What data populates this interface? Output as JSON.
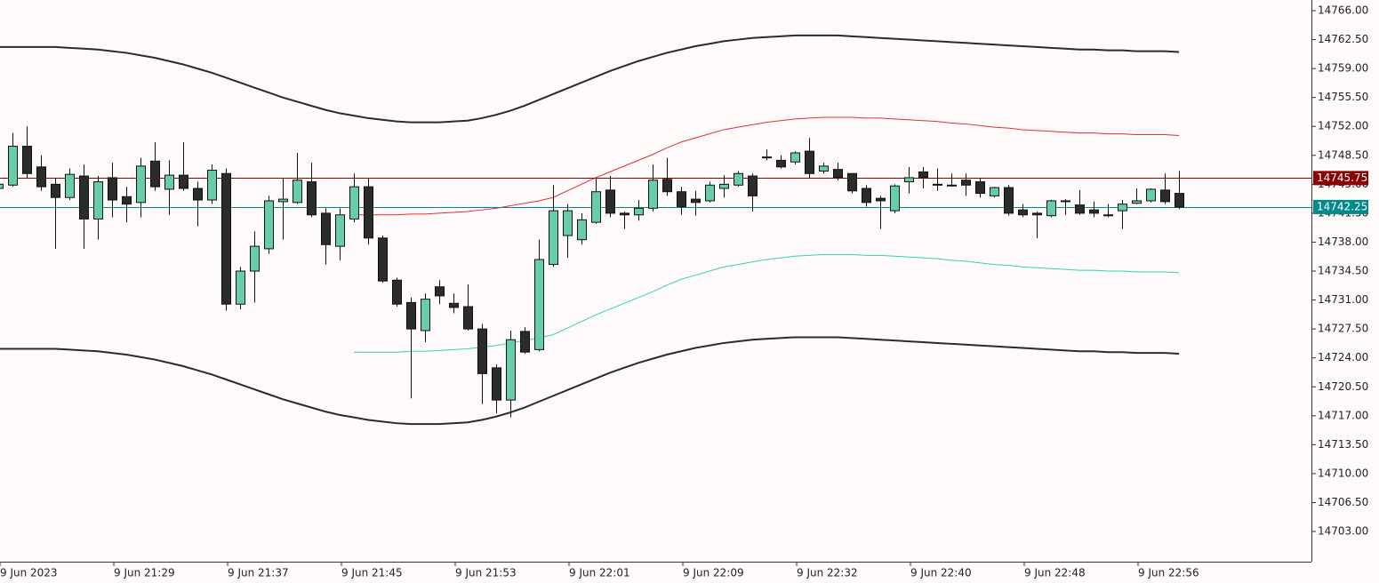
{
  "chart_data": {
    "type": "candlestick",
    "categories": [
      "9 Jun 2023",
      null,
      null,
      null,
      null,
      null,
      null,
      null,
      "9 Jun 21:29",
      null,
      null,
      null,
      null,
      null,
      null,
      null,
      "9 Jun 21:37",
      null,
      null,
      null,
      null,
      null,
      null,
      null,
      "9 Jun 21:45",
      null,
      null,
      null,
      null,
      null,
      null,
      null,
      "9 Jun 21:53",
      null,
      null,
      null,
      null,
      null,
      null,
      null,
      "9 Jun 22:01",
      null,
      null,
      null,
      null,
      null,
      null,
      null,
      "9 Jun 22:09",
      null,
      null,
      null,
      null,
      null,
      null,
      null,
      "9 Jun 22:32",
      null,
      null,
      null,
      null,
      null,
      null,
      null,
      "9 Jun 22:40",
      null,
      null,
      null,
      null,
      null,
      null,
      null,
      "9 Jun 22:48",
      null,
      null,
      null,
      null,
      null,
      null,
      null,
      "9 Jun 22:56",
      null,
      null,
      null
    ],
    "open": [
      14744.5,
      14744.9,
      14749.6,
      14747.1,
      14745.0,
      14743.4,
      14746.0,
      14740.8,
      14745.8,
      14743.5,
      14742.8,
      14747.8,
      14744.4,
      14746.1,
      14744.5,
      14743.1,
      14746.3,
      14730.5,
      14734.5,
      14737.2,
      14742.9,
      14742.8,
      14745.3,
      14741.5,
      14737.5,
      14740.8,
      14744.7,
      14738.5,
      14733.4,
      14730.7,
      14727.3,
      14732.6,
      14730.6,
      14730.2,
      14727.5,
      14722.8,
      14718.9,
      14727.2,
      14725.0,
      14735.3,
      14738.8,
      14738.3,
      14740.4,
      14744.3,
      14741.5,
      14741.3,
      14742.1,
      14745.6,
      14744.1,
      14743.2,
      14743.0,
      14744.5,
      14744.9,
      14746.0,
      14748.2,
      14747.9,
      14747.7,
      14749.0,
      14746.6,
      14746.8,
      14746.3,
      14744.5,
      14743.3,
      14741.8,
      14745.3,
      14746.5,
      14744.9,
      14744.9,
      14745.5,
      14745.3,
      14743.6,
      14744.6,
      14741.9,
      14741.5,
      14741.2,
      14742.9,
      14742.5,
      14741.9,
      14741.3,
      14741.8,
      14742.7,
      14743.0,
      14744.3,
      14743.9
    ],
    "high": [
      14745.5,
      14751.2,
      14752.0,
      14748.5,
      14745.8,
      14746.9,
      14747.4,
      14746.0,
      14747.6,
      14744.7,
      14748.2,
      14750.1,
      14747.9,
      14750.1,
      14745.3,
      14747.4,
      14746.9,
      14735.0,
      14739.3,
      14743.6,
      14745.8,
      14748.8,
      14747.6,
      14742.1,
      14742.1,
      14746.3,
      14745.8,
      14738.8,
      14733.7,
      14731.3,
      14731.8,
      14733.4,
      14731.8,
      14732.9,
      14728.1,
      14723.2,
      14727.3,
      14727.7,
      14738.3,
      14744.9,
      14742.6,
      14741.5,
      14745.8,
      14746.0,
      14741.7,
      14743.1,
      14747.4,
      14748.2,
      14744.7,
      14744.2,
      14745.3,
      14746.1,
      14746.6,
      14746.3,
      14749.2,
      14748.5,
      14749.0,
      14750.6,
      14747.6,
      14747.6,
      14746.3,
      14744.9,
      14743.6,
      14745.0,
      14747.1,
      14747.1,
      14746.9,
      14746.3,
      14746.3,
      14745.8,
      14744.7,
      14744.9,
      14742.6,
      14741.7,
      14743.1,
      14743.2,
      14744.3,
      14742.9,
      14742.6,
      14743.1,
      14744.5,
      14744.5,
      14746.3,
      14746.6
    ],
    "low": [
      14744.2,
      14744.7,
      14745.8,
      14744.2,
      14737.2,
      14743.1,
      14737.2,
      14738.3,
      14741.0,
      14740.4,
      14741.0,
      14744.2,
      14741.3,
      14744.2,
      14739.9,
      14742.6,
      14729.7,
      14729.9,
      14730.7,
      14736.6,
      14738.3,
      14742.6,
      14741.0,
      14735.3,
      14735.8,
      14740.4,
      14737.7,
      14733.1,
      14730.2,
      14719.1,
      14725.9,
      14730.5,
      14729.4,
      14727.3,
      14718.4,
      14717.3,
      14716.8,
      14724.5,
      14724.8,
      14735.0,
      14736.1,
      14737.7,
      14740.2,
      14741.0,
      14739.6,
      14740.6,
      14741.7,
      14743.6,
      14741.3,
      14741.2,
      14742.8,
      14743.4,
      14744.7,
      14741.7,
      14747.9,
      14746.9,
      14747.4,
      14745.8,
      14746.3,
      14745.5,
      14743.9,
      14742.3,
      14739.6,
      14741.5,
      14743.9,
      14744.5,
      14744.2,
      14744.7,
      14743.6,
      14743.4,
      14743.4,
      14741.2,
      14741.0,
      14738.5,
      14741.0,
      14741.3,
      14741.3,
      14741.0,
      14741.0,
      14739.6,
      14742.6,
      14742.8,
      14742.6,
      14742.0
    ],
    "close": [
      14745.0,
      14749.6,
      14746.3,
      14744.7,
      14743.4,
      14746.2,
      14740.8,
      14745.3,
      14743.1,
      14742.6,
      14747.2,
      14744.7,
      14746.1,
      14744.5,
      14743.1,
      14746.7,
      14730.5,
      14734.5,
      14737.5,
      14743.0,
      14743.2,
      14745.5,
      14741.3,
      14737.7,
      14741.3,
      14744.7,
      14738.5,
      14733.3,
      14730.5,
      14727.5,
      14731.1,
      14731.5,
      14730.1,
      14727.5,
      14722.1,
      14718.9,
      14726.2,
      14724.7,
      14735.9,
      14741.8,
      14741.8,
      14740.7,
      14744.1,
      14741.5,
      14741.3,
      14742.1,
      14745.5,
      14744.1,
      14742.3,
      14742.8,
      14744.9,
      14745.0,
      14746.3,
      14743.6,
      14748.3,
      14747.1,
      14748.8,
      14746.3,
      14747.2,
      14745.8,
      14744.2,
      14742.8,
      14743.0,
      14744.8,
      14745.8,
      14745.8,
      14745.0,
      14744.8,
      14744.9,
      14743.9,
      14744.6,
      14741.5,
      14741.3,
      14741.3,
      14743.0,
      14743.0,
      14741.5,
      14741.5,
      14741.2,
      14742.6,
      14743.0,
      14744.4,
      14742.9,
      14742.25
    ],
    "up_color": "#66cdaa",
    "down_color": "#2b2b2b",
    "lines": [
      {
        "color": "#2b2b2b",
        "values": [
          14761.6,
          14761.6,
          14761.6,
          14761.6,
          14761.6,
          14761.5,
          14761.4,
          14761.3,
          14761.1,
          14760.9,
          14760.6,
          14760.3,
          14759.9,
          14759.5,
          14759.0,
          14758.5,
          14757.9,
          14757.3,
          14756.7,
          14756.1,
          14755.5,
          14755.0,
          14754.5,
          14754.0,
          14753.6,
          14753.3,
          14753.0,
          14752.8,
          14752.6,
          14752.5,
          14752.5,
          14752.5,
          14752.6,
          14752.7,
          14753.0,
          14753.4,
          14753.9,
          14754.5,
          14755.2,
          14755.9,
          14756.6,
          14757.3,
          14758.0,
          14758.7,
          14759.3,
          14759.9,
          14760.4,
          14760.9,
          14761.3,
          14761.7,
          14762.0,
          14762.3,
          14762.5,
          14762.7,
          14762.8,
          14762.9,
          14763.0,
          14763.0,
          14763.0,
          14763.0,
          14762.9,
          14762.8,
          14762.7,
          14762.6,
          14762.5,
          14762.4,
          14762.3,
          14762.2,
          14762.1,
          14762.0,
          14761.9,
          14761.8,
          14761.7,
          14761.6,
          14761.5,
          14761.4,
          14761.3,
          14761.3,
          14761.2,
          14761.2,
          14761.1,
          14761.1,
          14761.1,
          14761.0
        ]
      },
      {
        "color": "#2b2b2b",
        "values": [
          14725.1,
          14725.1,
          14725.1,
          14725.1,
          14725.1,
          14725.0,
          14724.9,
          14724.8,
          14724.6,
          14724.4,
          14724.1,
          14723.8,
          14723.4,
          14723.0,
          14722.5,
          14722.0,
          14721.4,
          14720.8,
          14720.2,
          14719.6,
          14719.0,
          14718.5,
          14718.0,
          14717.5,
          14717.1,
          14716.8,
          14716.5,
          14716.3,
          14716.1,
          14716.0,
          14716.0,
          14716.0,
          14716.1,
          14716.2,
          14716.5,
          14716.9,
          14717.4,
          14718.0,
          14718.7,
          14719.4,
          14720.1,
          14720.8,
          14721.5,
          14722.2,
          14722.8,
          14723.4,
          14723.9,
          14724.4,
          14724.8,
          14725.2,
          14725.5,
          14725.8,
          14726.0,
          14726.2,
          14726.3,
          14726.4,
          14726.5,
          14726.5,
          14726.5,
          14726.5,
          14726.4,
          14726.3,
          14726.2,
          14726.1,
          14726.0,
          14725.9,
          14725.8,
          14725.7,
          14725.6,
          14725.5,
          14725.4,
          14725.3,
          14725.2,
          14725.1,
          14725.0,
          14724.9,
          14724.8,
          14724.8,
          14724.7,
          14724.7,
          14724.6,
          14724.6,
          14724.6,
          14724.5
        ]
      },
      {
        "color": "#e0303a",
        "values": [
          null,
          null,
          null,
          null,
          null,
          null,
          null,
          null,
          null,
          null,
          null,
          null,
          null,
          null,
          null,
          null,
          null,
          null,
          null,
          null,
          null,
          null,
          null,
          null,
          null,
          14741.3,
          14741.3,
          14741.3,
          14741.3,
          14741.4,
          14741.4,
          14741.5,
          14741.6,
          14741.7,
          14741.9,
          14742.1,
          14742.4,
          14742.7,
          14743.0,
          14743.4,
          14744.2,
          14745.0,
          14745.8,
          14746.5,
          14747.2,
          14747.9,
          14748.6,
          14749.4,
          14750.1,
          14750.6,
          14751.1,
          14751.6,
          14751.9,
          14752.2,
          14752.5,
          14752.7,
          14752.9,
          14753.0,
          14753.1,
          14753.1,
          14753.1,
          14753.0,
          14753.0,
          14752.9,
          14752.8,
          14752.7,
          14752.6,
          14752.4,
          14752.3,
          14752.1,
          14751.9,
          14751.8,
          14751.6,
          14751.5,
          14751.4,
          14751.3,
          14751.2,
          14751.2,
          14751.1,
          14751.1,
          14751.0,
          14751.0,
          14751.0,
          14750.9
        ]
      },
      {
        "color": "#2fd6a6",
        "values": [
          null,
          null,
          null,
          null,
          null,
          null,
          null,
          null,
          null,
          null,
          null,
          null,
          null,
          null,
          null,
          null,
          null,
          null,
          null,
          null,
          null,
          null,
          null,
          null,
          null,
          14724.7,
          14724.7,
          14724.7,
          14724.7,
          14724.8,
          14724.8,
          14724.9,
          14725.0,
          14725.1,
          14725.3,
          14725.5,
          14725.8,
          14726.1,
          14726.4,
          14726.8,
          14727.6,
          14728.4,
          14729.2,
          14729.9,
          14730.6,
          14731.3,
          14732.0,
          14732.8,
          14733.5,
          14734.0,
          14734.5,
          14735.0,
          14735.3,
          14735.6,
          14735.9,
          14736.1,
          14736.3,
          14736.4,
          14736.5,
          14736.5,
          14736.5,
          14736.4,
          14736.4,
          14736.3,
          14736.2,
          14736.1,
          14736.0,
          14735.8,
          14735.7,
          14735.5,
          14735.3,
          14735.2,
          14735.0,
          14734.9,
          14734.8,
          14734.7,
          14734.6,
          14734.6,
          14734.5,
          14734.5,
          14734.4,
          14734.4,
          14734.4,
          14734.3
        ]
      }
    ],
    "price_lines": [
      {
        "value": 14745.75,
        "color": "#8b0000"
      },
      {
        "value": 14742.25,
        "color": "#008b8b"
      }
    ],
    "ylim": [
      14699.35,
      14767.29
    ],
    "yticks": [
      {
        "value": 14766,
        "label": "14766.00"
      },
      {
        "value": 14762.5,
        "label": "14762.50"
      },
      {
        "value": 14759,
        "label": "14759.00"
      },
      {
        "value": 14755.5,
        "label": "14755.50"
      },
      {
        "value": 14752,
        "label": "14752.00"
      },
      {
        "value": 14748.5,
        "label": "14748.50"
      },
      {
        "value": 14745,
        "label": "14745.00"
      },
      {
        "value": 14741.5,
        "label": "14741.50"
      },
      {
        "value": 14738,
        "label": "14738.00"
      },
      {
        "value": 14734.5,
        "label": "14734.50"
      },
      {
        "value": 14731,
        "label": "14731.00"
      },
      {
        "value": 14727.5,
        "label": "14727.50"
      },
      {
        "value": 14724,
        "label": "14724.00"
      },
      {
        "value": 14720.5,
        "label": "14720.50"
      },
      {
        "value": 14717,
        "label": "14717.00"
      },
      {
        "value": 14713.5,
        "label": "14713.50"
      },
      {
        "value": 14710,
        "label": "14710.00"
      },
      {
        "value": 14706.5,
        "label": "14706.50"
      },
      {
        "value": 14703,
        "label": "14703.00"
      }
    ]
  }
}
